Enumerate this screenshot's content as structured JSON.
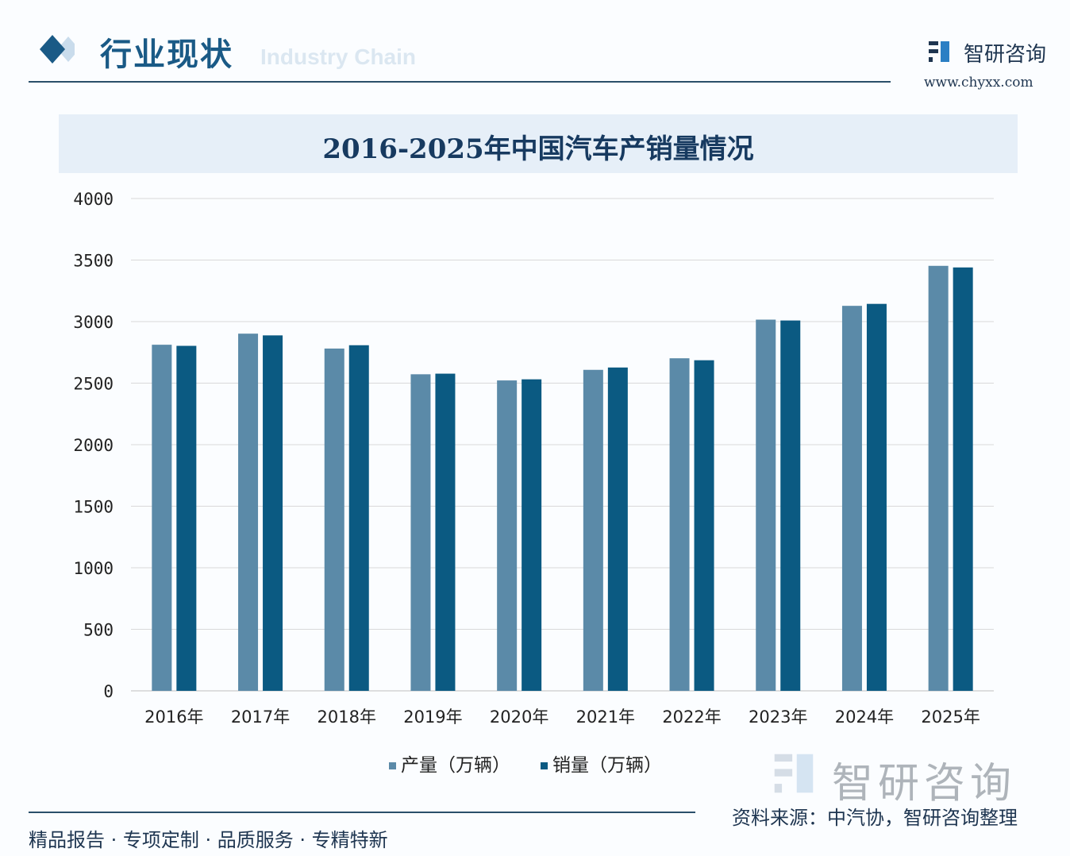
{
  "header": {
    "title": "行业现状",
    "subtitle": "Industry Chain",
    "brand": "智研咨询",
    "url": "www.chyxx.com"
  },
  "colors": {
    "production": "#5b8aa8",
    "sales": "#0b5a82",
    "grid": "#d9d9d9",
    "accent": "#1a5a86"
  },
  "chart_data": {
    "type": "bar",
    "title": "2016-2025年中国汽车产销量情况",
    "categories": [
      "2016年",
      "2017年",
      "2018年",
      "2019年",
      "2020年",
      "2021年",
      "2022年",
      "2023年",
      "2024年",
      "2025年"
    ],
    "series": [
      {
        "name": "产量（万辆）",
        "values": [
          2812,
          2902,
          2781,
          2572,
          2522,
          2608,
          2702,
          3016,
          3128,
          3453
        ]
      },
      {
        "name": "销量（万辆）",
        "values": [
          2803,
          2888,
          2808,
          2577,
          2531,
          2627,
          2686,
          3009,
          3144,
          3440
        ]
      }
    ],
    "ylim": [
      0,
      4000
    ],
    "yticks": [
      "0",
      "500",
      "1000",
      "1500",
      "2000",
      "2500",
      "3000",
      "3500",
      "4000"
    ],
    "grid": true,
    "legend_position": "bottom"
  },
  "footer": {
    "source": "资料来源：中汽协，智研咨询整理",
    "slogan": "精品报告 · 专项定制 · 品质服务 · 专精特新",
    "watermark": "智研咨询"
  }
}
